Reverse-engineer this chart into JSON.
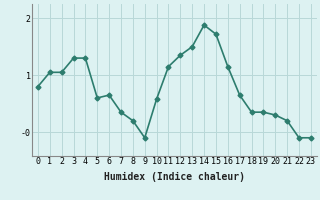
{
  "x": [
    0,
    1,
    2,
    3,
    4,
    5,
    6,
    7,
    8,
    9,
    10,
    11,
    12,
    13,
    14,
    15,
    16,
    17,
    18,
    19,
    20,
    21,
    22,
    23
  ],
  "y": [
    0.8,
    1.05,
    1.05,
    1.3,
    1.3,
    0.6,
    0.65,
    0.35,
    0.2,
    -0.1,
    0.58,
    1.15,
    1.35,
    1.5,
    1.88,
    1.72,
    1.15,
    0.65,
    0.35,
    0.35,
    0.3,
    0.2,
    -0.1,
    -0.1
  ],
  "line_color": "#2d7d6e",
  "marker": "D",
  "markersize": 2.5,
  "linewidth": 1.2,
  "bg_color": "#ddf2f2",
  "grid_color": "#b8d8d8",
  "xlabel": "Humidex (Indice chaleur)",
  "xlabel_fontsize": 7,
  "yticks": [
    0,
    1,
    2
  ],
  "ytick_labels": [
    "-0",
    "1",
    "2"
  ],
  "ylim": [
    -0.42,
    2.25
  ],
  "xlim": [
    -0.5,
    23.5
  ],
  "xticks": [
    0,
    1,
    2,
    3,
    4,
    5,
    6,
    7,
    8,
    9,
    10,
    11,
    12,
    13,
    14,
    15,
    16,
    17,
    18,
    19,
    20,
    21,
    22,
    23
  ],
  "tick_fontsize": 6
}
